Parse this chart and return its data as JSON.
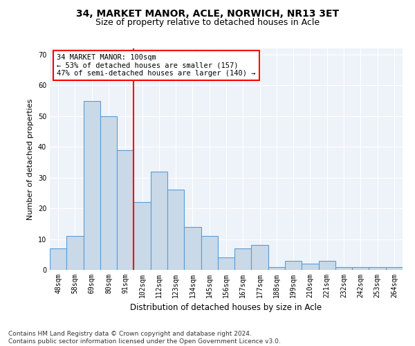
{
  "title1": "34, MARKET MANOR, ACLE, NORWICH, NR13 3ET",
  "title2": "Size of property relative to detached houses in Acle",
  "xlabel": "Distribution of detached houses by size in Acle",
  "ylabel": "Number of detached properties",
  "footnote": "Contains HM Land Registry data © Crown copyright and database right 2024.\nContains public sector information licensed under the Open Government Licence v3.0.",
  "categories": [
    "48sqm",
    "58sqm",
    "69sqm",
    "80sqm",
    "91sqm",
    "102sqm",
    "112sqm",
    "123sqm",
    "134sqm",
    "145sqm",
    "156sqm",
    "167sqm",
    "177sqm",
    "188sqm",
    "199sqm",
    "210sqm",
    "221sqm",
    "232sqm",
    "242sqm",
    "253sqm",
    "264sqm"
  ],
  "values": [
    7,
    11,
    55,
    50,
    39,
    22,
    32,
    26,
    14,
    11,
    4,
    7,
    8,
    1,
    3,
    2,
    3,
    1,
    1,
    1,
    1
  ],
  "bar_color": "#c9d9e8",
  "bar_edge_color": "#5b9bd5",
  "reference_line_label": "34 MARKET MANOR: 100sqm",
  "annotation_line1": "← 53% of detached houses are smaller (157)",
  "annotation_line2": "47% of semi-detached houses are larger (140) →",
  "ylim": [
    0,
    72
  ],
  "yticks": [
    0,
    10,
    20,
    30,
    40,
    50,
    60,
    70
  ],
  "annotation_box_color": "white",
  "annotation_box_edge_color": "red",
  "vline_color": "red",
  "title1_fontsize": 10,
  "title2_fontsize": 9,
  "xlabel_fontsize": 8.5,
  "ylabel_fontsize": 8,
  "tick_fontsize": 7,
  "footnote_fontsize": 6.5,
  "annotation_fontsize": 7.5
}
